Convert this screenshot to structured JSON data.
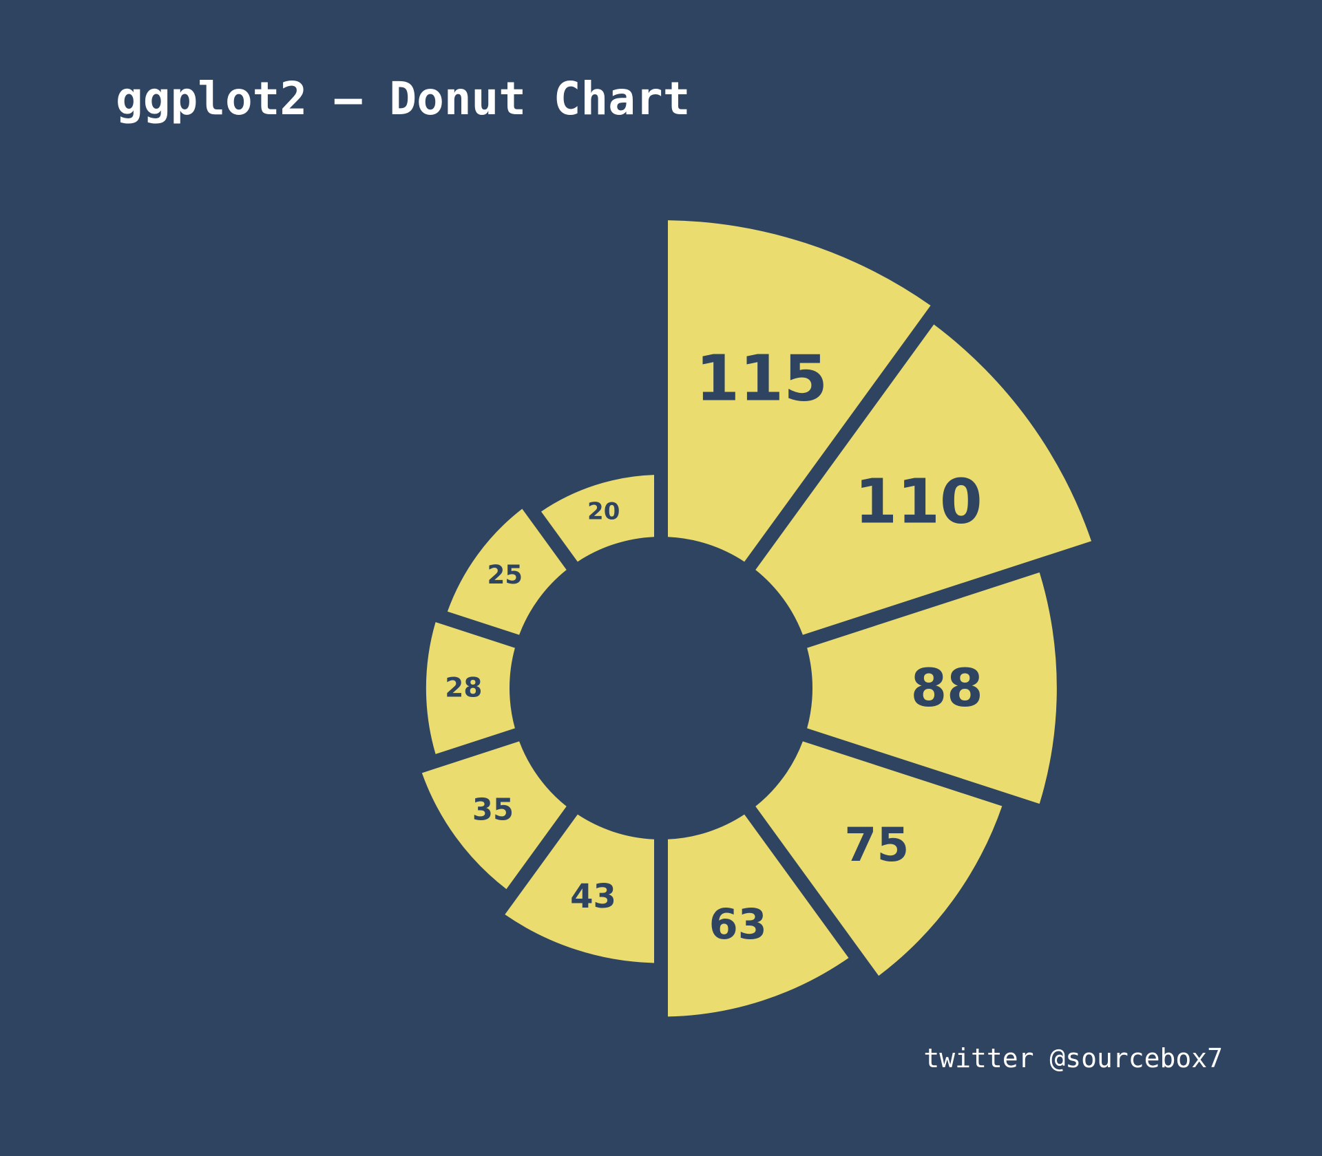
{
  "title": "ggplot2 – Donut Chart",
  "caption": "twitter @sourcebox7",
  "colors": {
    "background": "#2f4460",
    "slice": "#eadc6e",
    "label": "#2f4460",
    "text": "#ffffff"
  },
  "chart_data": {
    "type": "pie",
    "subtype": "donut-radial",
    "values": [
      115,
      110,
      88,
      75,
      63,
      43,
      35,
      28,
      25,
      20
    ],
    "labels": [
      "115",
      "110",
      "88",
      "75",
      "63",
      "43",
      "35",
      "28",
      "25",
      "20"
    ],
    "order": "clockwise from 12 o'clock, descending",
    "legend": "none",
    "grid": false
  }
}
